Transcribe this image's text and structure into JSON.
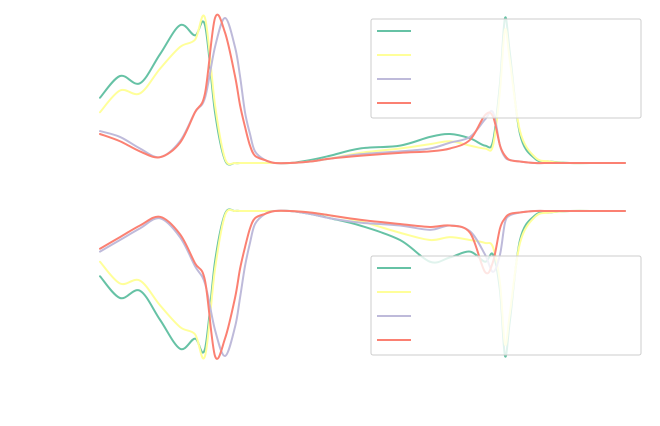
{
  "chart_data": [
    {
      "type": "line",
      "panel": "top",
      "grid": false,
      "legend_position": "top-right",
      "x": [
        0,
        20,
        40,
        60,
        80,
        95,
        105,
        115,
        125,
        135,
        140,
        145,
        150,
        155,
        165,
        175,
        190,
        210,
        230,
        260,
        300,
        330,
        350,
        370,
        385,
        393,
        400,
        405,
        410,
        420,
        435,
        450,
        470,
        500,
        525
      ],
      "series": [
        {
          "color": "#66c2a5",
          "values": [
            0.45,
            0.6,
            0.55,
            0.75,
            0.95,
            0.88,
            0.95,
            0.35,
            0.02,
            0.0,
            0.0,
            0.0,
            0.0,
            0.0,
            0.0,
            0.0,
            0.0,
            0.02,
            0.05,
            0.1,
            0.12,
            0.18,
            0.2,
            0.17,
            0.12,
            0.15,
            0.55,
            1.0,
            0.75,
            0.2,
            0.03,
            0.01,
            0.0,
            0.0,
            0.0
          ]
        },
        {
          "color": "#ffff99",
          "values": [
            0.35,
            0.5,
            0.48,
            0.65,
            0.8,
            0.85,
            1.0,
            0.4,
            0.03,
            0.0,
            0.0,
            0.0,
            0.0,
            0.0,
            0.0,
            0.0,
            0.0,
            0.01,
            0.03,
            0.07,
            0.1,
            0.13,
            0.15,
            0.12,
            0.1,
            0.12,
            0.5,
            0.92,
            0.7,
            0.22,
            0.04,
            0.01,
            0.0,
            0.0,
            0.0
          ]
        },
        {
          "color": "#bebada",
          "values": [
            0.22,
            0.18,
            0.1,
            0.04,
            0.15,
            0.35,
            0.45,
            0.8,
            1.0,
            0.8,
            0.6,
            0.35,
            0.2,
            0.08,
            0.02,
            0.0,
            0.0,
            0.01,
            0.03,
            0.06,
            0.08,
            0.1,
            0.14,
            0.18,
            0.3,
            0.35,
            0.12,
            0.04,
            0.02,
            0.01,
            0.0,
            0.0,
            0.0,
            0.0,
            0.0
          ]
        },
        {
          "color": "#fb8072",
          "values": [
            0.2,
            0.15,
            0.08,
            0.04,
            0.14,
            0.35,
            0.48,
            1.0,
            0.9,
            0.6,
            0.4,
            0.25,
            0.12,
            0.05,
            0.02,
            0.0,
            0.0,
            0.01,
            0.03,
            0.05,
            0.07,
            0.08,
            0.1,
            0.16,
            0.33,
            0.32,
            0.12,
            0.05,
            0.02,
            0.01,
            0.0,
            0.0,
            0.0,
            0.0,
            0.0
          ]
        }
      ]
    },
    {
      "type": "line",
      "panel": "bottom",
      "grid": false,
      "legend_position": "bottom-right",
      "x": [
        0,
        20,
        40,
        60,
        80,
        95,
        105,
        115,
        125,
        135,
        140,
        145,
        150,
        155,
        165,
        175,
        190,
        210,
        230,
        260,
        300,
        330,
        350,
        370,
        385,
        393,
        400,
        405,
        410,
        420,
        435,
        450,
        470,
        500,
        525
      ],
      "series": [
        {
          "color": "#66c2a5",
          "values": [
            -0.45,
            -0.6,
            -0.55,
            -0.75,
            -0.95,
            -0.88,
            -0.95,
            -0.35,
            -0.02,
            0.0,
            0.0,
            0.0,
            0.0,
            0.0,
            0.0,
            0.0,
            0.0,
            -0.02,
            -0.05,
            -0.1,
            -0.2,
            -0.35,
            -0.32,
            -0.28,
            -0.35,
            -0.3,
            -0.55,
            -1.0,
            -0.75,
            -0.2,
            -0.03,
            -0.01,
            0.0,
            0.0,
            0.0
          ]
        },
        {
          "color": "#ffff99",
          "values": [
            -0.35,
            -0.5,
            -0.48,
            -0.65,
            -0.8,
            -0.85,
            -1.0,
            -0.4,
            -0.03,
            0.0,
            0.0,
            0.0,
            0.0,
            0.0,
            0.0,
            0.0,
            0.0,
            -0.01,
            -0.03,
            -0.07,
            -0.15,
            -0.2,
            -0.18,
            -0.2,
            -0.22,
            -0.25,
            -0.5,
            -0.92,
            -0.7,
            -0.22,
            -0.04,
            -0.01,
            0.0,
            0.0,
            0.0
          ]
        },
        {
          "color": "#bebada",
          "values": [
            -0.28,
            -0.2,
            -0.12,
            -0.05,
            -0.18,
            -0.38,
            -0.5,
            -0.82,
            -1.0,
            -0.8,
            -0.6,
            -0.38,
            -0.22,
            -0.09,
            -0.02,
            0.0,
            0.0,
            -0.02,
            -0.05,
            -0.08,
            -0.1,
            -0.13,
            -0.1,
            -0.14,
            -0.3,
            -0.42,
            -0.3,
            -0.08,
            -0.03,
            -0.01,
            0.0,
            0.0,
            0.0,
            0.0,
            0.0
          ]
        },
        {
          "color": "#fb8072",
          "values": [
            -0.26,
            -0.18,
            -0.1,
            -0.04,
            -0.16,
            -0.36,
            -0.48,
            -1.0,
            -0.88,
            -0.6,
            -0.4,
            -0.25,
            -0.12,
            -0.05,
            -0.02,
            0.0,
            0.0,
            -0.01,
            -0.03,
            -0.06,
            -0.09,
            -0.11,
            -0.1,
            -0.15,
            -0.42,
            -0.35,
            -0.12,
            -0.05,
            -0.02,
            -0.01,
            0.0,
            0.0,
            0.0,
            0.0,
            0.0
          ]
        }
      ]
    }
  ]
}
